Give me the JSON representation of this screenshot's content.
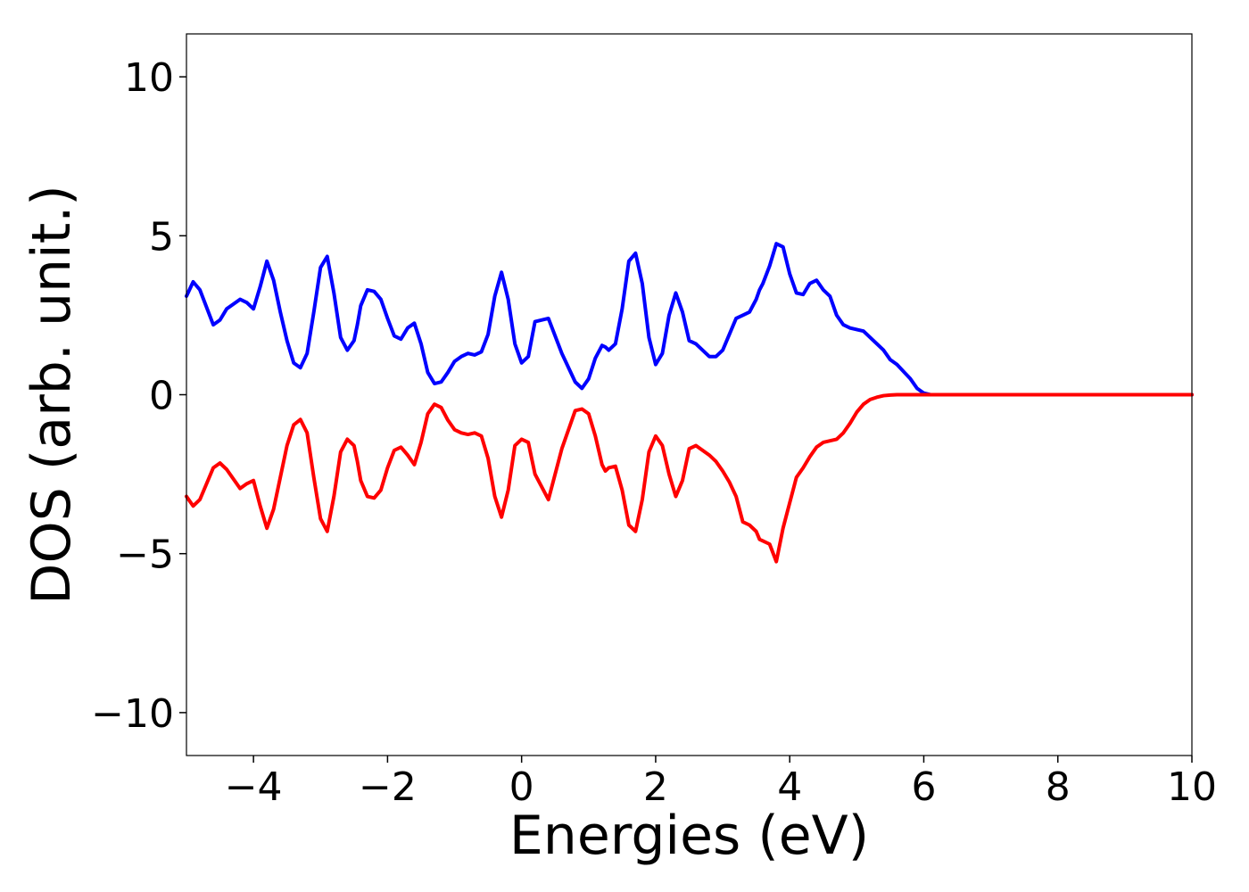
{
  "chart_data": {
    "type": "line",
    "title": "",
    "xlabel": "Energies (eV)",
    "ylabel": "DOS (arb. unit.)",
    "xlim": [
      -5,
      10
    ],
    "ylim": [
      -11.35,
      11.35
    ],
    "xticks": [
      -4,
      -2,
      0,
      2,
      4,
      6,
      8,
      10
    ],
    "xtick_labels": [
      "−4",
      "−2",
      "0",
      "2",
      "4",
      "6",
      "8",
      "10"
    ],
    "yticks": [
      -10,
      -5,
      0,
      5,
      10
    ],
    "ytick_labels": [
      "−10",
      "−5",
      "0",
      "5",
      "10"
    ],
    "grid": false,
    "legend": "none",
    "series": [
      {
        "color": "#0000ff",
        "x": [
          -5.0,
          -4.9,
          -4.8,
          -4.6,
          -4.5,
          -4.4,
          -4.2,
          -4.1,
          -4.0,
          -3.9,
          -3.8,
          -3.7,
          -3.6,
          -3.5,
          -3.4,
          -3.3,
          -3.2,
          -3.1,
          -3.0,
          -2.9,
          -2.8,
          -2.7,
          -2.6,
          -2.5,
          -2.45,
          -2.4,
          -2.3,
          -2.2,
          -2.1,
          -2.0,
          -1.9,
          -1.8,
          -1.7,
          -1.6,
          -1.5,
          -1.4,
          -1.3,
          -1.2,
          -1.1,
          -1.0,
          -0.9,
          -0.8,
          -0.7,
          -0.6,
          -0.5,
          -0.4,
          -0.3,
          -0.2,
          -0.1,
          0.0,
          0.1,
          0.2,
          0.4,
          0.6,
          0.8,
          0.9,
          1.0,
          1.1,
          1.2,
          1.25,
          1.3,
          1.4,
          1.5,
          1.6,
          1.7,
          1.8,
          1.9,
          2.0,
          2.1,
          2.2,
          2.3,
          2.4,
          2.5,
          2.6,
          2.7,
          2.8,
          2.9,
          3.0,
          3.1,
          3.2,
          3.3,
          3.4,
          3.5,
          3.55,
          3.6,
          3.7,
          3.8,
          3.9,
          4.0,
          4.1,
          4.2,
          4.3,
          4.4,
          4.5,
          4.6,
          4.7,
          4.8,
          4.9,
          5.0,
          5.1,
          5.2,
          5.3,
          5.4,
          5.5,
          5.6,
          5.8,
          5.9,
          6.0,
          6.1,
          6.2,
          6.3,
          6.4,
          6.5,
          6.55,
          6.6,
          6.7,
          6.8,
          6.9,
          7.0,
          7.1,
          7.2,
          7.3,
          7.4,
          7.5,
          7.6,
          7.7,
          7.8,
          7.9,
          8.0,
          8.2,
          8.4,
          8.5,
          8.6,
          8.7,
          8.8,
          8.9,
          9.0,
          9.1,
          9.2,
          9.3,
          9.4,
          9.5,
          9.6,
          10.0
        ],
        "y": [
          3.1,
          3.55,
          3.3,
          2.2,
          2.35,
          2.7,
          3.0,
          2.9,
          2.7,
          3.4,
          4.2,
          3.6,
          2.6,
          1.7,
          1.0,
          0.85,
          1.3,
          2.6,
          4.0,
          4.35,
          3.2,
          1.8,
          1.4,
          1.7,
          2.2,
          2.8,
          3.3,
          3.25,
          3.0,
          2.4,
          1.85,
          1.75,
          2.1,
          2.25,
          1.6,
          0.7,
          0.35,
          0.4,
          0.7,
          1.05,
          1.2,
          1.3,
          1.25,
          1.35,
          1.9,
          3.1,
          3.85,
          3.0,
          1.6,
          1.0,
          1.2,
          2.3,
          2.4,
          1.3,
          0.4,
          0.2,
          0.5,
          1.15,
          1.55,
          1.5,
          1.4,
          1.6,
          2.7,
          4.2,
          4.45,
          3.5,
          1.8,
          0.95,
          1.3,
          2.5,
          3.2,
          2.6,
          1.7,
          1.6,
          1.4,
          1.2,
          1.2,
          1.4,
          1.9,
          2.4,
          2.5,
          2.6,
          3.0,
          3.3,
          3.5,
          4.05,
          4.75,
          4.65,
          3.8,
          3.2,
          3.15,
          3.5,
          3.6,
          3.3,
          3.1,
          2.5,
          2.2,
          2.1,
          2.05,
          2.0,
          1.8,
          1.6,
          1.4,
          1.1,
          0.95,
          0.5,
          0.2,
          0.05,
          0.0,
          0.0,
          0.0,
          0.0,
          0.0,
          0.0,
          0.0,
          0.0,
          0.0,
          0.0,
          0.0,
          0.0,
          0.0,
          0.0,
          0.0,
          0.0,
          0.0,
          0.0,
          0.0,
          0.0,
          0.0,
          0.0,
          0.0,
          0.0,
          0.0,
          0.0,
          0.0,
          0.0,
          0.0,
          0.0,
          0.0,
          0.0,
          0.0,
          0.0,
          0.0,
          0.0
        ]
      },
      {
        "color": "#ff0000",
        "x": [
          -5.0,
          -4.9,
          -4.8,
          -4.6,
          -4.5,
          -4.4,
          -4.2,
          -4.1,
          -4.0,
          -3.9,
          -3.8,
          -3.7,
          -3.6,
          -3.5,
          -3.4,
          -3.3,
          -3.2,
          -3.1,
          -3.0,
          -2.9,
          -2.8,
          -2.7,
          -2.6,
          -2.5,
          -2.45,
          -2.4,
          -2.3,
          -2.2,
          -2.1,
          -2.0,
          -1.9,
          -1.8,
          -1.7,
          -1.6,
          -1.5,
          -1.4,
          -1.3,
          -1.2,
          -1.1,
          -1.0,
          -0.9,
          -0.8,
          -0.7,
          -0.6,
          -0.5,
          -0.4,
          -0.3,
          -0.2,
          -0.1,
          0.0,
          0.1,
          0.2,
          0.4,
          0.6,
          0.8,
          0.9,
          1.0,
          1.1,
          1.2,
          1.25,
          1.3,
          1.4,
          1.5,
          1.6,
          1.7,
          1.8,
          1.9,
          2.0,
          2.1,
          2.2,
          2.3,
          2.4,
          2.5,
          2.6,
          2.7,
          2.8,
          2.9,
          3.0,
          3.1,
          3.2,
          3.3,
          3.4,
          3.5,
          3.55,
          3.6,
          3.7,
          3.8,
          3.9,
          4.0,
          4.1,
          4.2,
          4.3,
          4.4,
          4.5,
          4.6,
          4.7,
          4.8,
          4.9,
          5.0,
          5.1,
          5.2,
          5.3,
          5.4,
          5.5,
          5.6,
          5.8,
          5.9,
          6.0,
          6.1,
          6.2,
          6.3,
          6.4,
          6.5,
          6.55,
          6.6,
          6.7,
          6.8,
          6.9,
          7.0,
          7.1,
          7.2,
          7.3,
          7.4,
          7.5,
          7.6,
          7.7,
          7.8,
          7.9,
          8.0,
          8.2,
          8.4,
          8.5,
          8.6,
          8.7,
          8.8,
          8.9,
          9.0,
          9.1,
          9.2,
          9.3,
          9.4,
          9.5,
          9.6,
          10.0
        ],
        "y": [
          -3.2,
          -3.5,
          -3.3,
          -2.3,
          -2.15,
          -2.35,
          -2.95,
          -2.8,
          -2.7,
          -3.5,
          -4.2,
          -3.6,
          -2.6,
          -1.6,
          -0.95,
          -0.78,
          -1.2,
          -2.6,
          -3.9,
          -4.3,
          -3.2,
          -1.8,
          -1.4,
          -1.6,
          -2.1,
          -2.7,
          -3.2,
          -3.25,
          -3.0,
          -2.3,
          -1.75,
          -1.65,
          -1.9,
          -2.2,
          -1.5,
          -0.6,
          -0.3,
          -0.4,
          -0.8,
          -1.1,
          -1.2,
          -1.25,
          -1.2,
          -1.3,
          -2.0,
          -3.2,
          -3.85,
          -3.0,
          -1.6,
          -1.4,
          -1.5,
          -2.5,
          -3.3,
          -1.7,
          -0.5,
          -0.45,
          -0.6,
          -1.3,
          -2.2,
          -2.4,
          -2.3,
          -2.25,
          -3.0,
          -4.1,
          -4.3,
          -3.3,
          -1.8,
          -1.3,
          -1.6,
          -2.5,
          -3.2,
          -2.7,
          -1.7,
          -1.6,
          -1.75,
          -1.9,
          -2.1,
          -2.4,
          -2.75,
          -3.2,
          -4.0,
          -4.1,
          -4.3,
          -4.55,
          -4.6,
          -4.7,
          -5.25,
          -4.2,
          -3.4,
          -2.6,
          -2.3,
          -1.95,
          -1.65,
          -1.5,
          -1.45,
          -1.4,
          -1.2,
          -0.9,
          -0.55,
          -0.3,
          -0.15,
          -0.08,
          -0.03,
          -0.01,
          -0.0,
          0.0,
          0.0,
          0.0,
          0.0,
          0.0,
          0.0,
          0.0,
          0.0,
          0.0,
          0.0,
          0.0,
          0.0,
          0.0,
          0.0,
          0.0,
          0.0,
          0.0,
          0.0,
          0.0,
          0.0,
          0.0,
          0.0,
          0.0,
          0.0,
          0.0,
          0.0,
          0.0,
          0.0,
          0.0,
          0.0,
          0.0,
          0.0,
          0.0,
          0.0,
          0.0,
          0.0,
          0.0,
          0.0,
          0.0
        ]
      }
    ]
  }
}
